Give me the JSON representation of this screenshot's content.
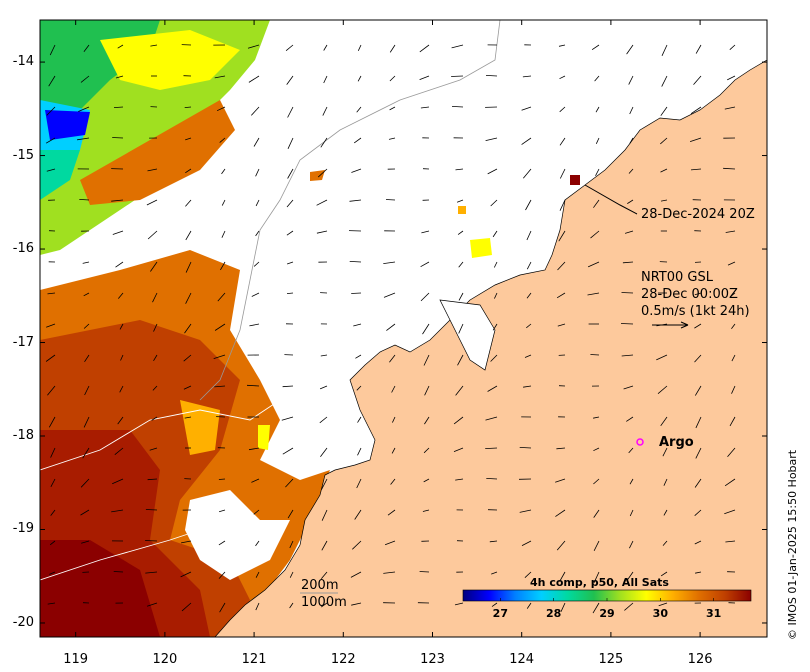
{
  "map": {
    "y_axis_labels": [
      "-14",
      "-15",
      "-16",
      "-17",
      "-18",
      "-19",
      "-20"
    ],
    "x_axis_labels": [
      "119",
      "120",
      "121",
      "122",
      "123",
      "124",
      "125",
      "126"
    ],
    "lat_range": [
      -20.15,
      -13.55
    ],
    "lon_range": [
      118.6,
      126.75
    ],
    "land_color": "#fdc99c",
    "no_data_color": "#ffffff"
  },
  "annotations": {
    "timestamp": "28-Dec-2024 20Z",
    "current_title": "NRT00 GSL",
    "current_date": "28-Dec 00:00Z",
    "current_scale": "0.5m/s (1kt 24h)",
    "argo_label": "Argo",
    "contour_200": "200m",
    "contour_1000": "1000m",
    "credit": "© IMOS 01-Jan-2025 15:50 Hobart"
  },
  "colorbar": {
    "title": "4h comp, p50, All Sats",
    "tick_labels": [
      "27",
      "28",
      "29",
      "30",
      "31"
    ],
    "tick_values": [
      27,
      28,
      29,
      30,
      31
    ],
    "range": [
      26.3,
      31.7
    ],
    "colors": [
      "#00007f",
      "#0000ff",
      "#0080ff",
      "#00cfff",
      "#00d9a0",
      "#20c050",
      "#a0e020",
      "#ffff00",
      "#ffb000",
      "#e07000",
      "#c04000",
      "#8b0000"
    ]
  },
  "argo": {
    "lon": 125.3,
    "lat": -18.0,
    "color": "#ff00ff"
  }
}
